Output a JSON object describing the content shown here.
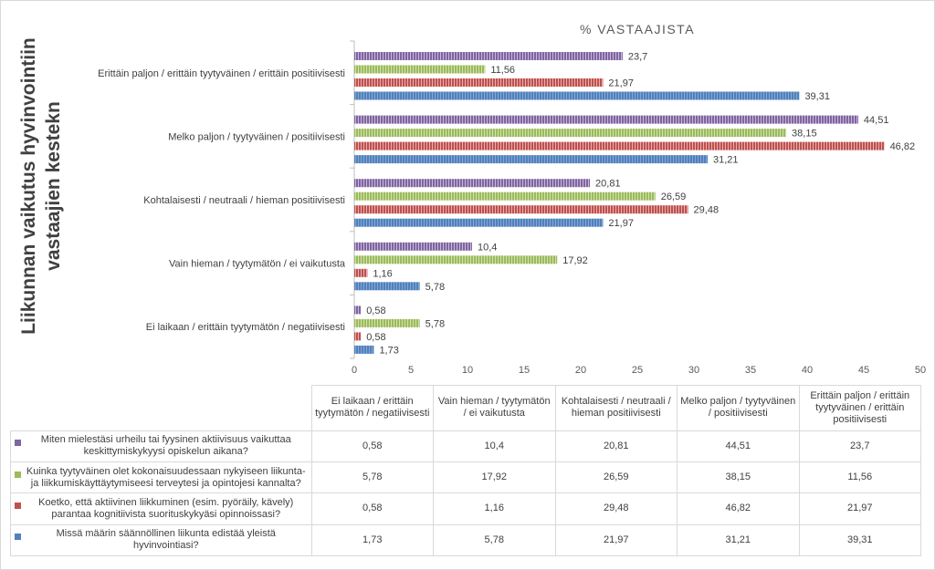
{
  "chart_data": {
    "type": "bar",
    "orientation": "horizontal",
    "title": "% VASTAAJISTA",
    "ylabel_lines": [
      "Liikunnan vaikutus hyvinvointiin",
      "vastaajien kestekn"
    ],
    "xlim": [
      0,
      50
    ],
    "xticks": [
      "0",
      "5",
      "10",
      "15",
      "20",
      "25",
      "30",
      "35",
      "40",
      "45",
      "50"
    ],
    "categories": [
      "Ei laikaan / erittäin tyytymätön / negatiivisesti",
      "Vain hieman / tyytymätön / ei vaikutusta",
      "Kohtalaisesti / neutraali / hieman positiivisesti",
      "Melko paljon / tyytyväinen / positiivisesti",
      "Erittäin paljon / erittäin tyytyväinen / erittäin positiivisesti"
    ],
    "table_headers": [
      "Ei laikaan / erittäin tyytymätön / negatiivisesti",
      "Vain hieman / tyytymätön / ei vaikutusta",
      "Kohtalaisesti / neutraali / hieman positiivisesti",
      "Melko paljon / tyytyväinen / positiivisesti",
      "Erittäin paljon / erittäin tyytyväinen / erittäin positiivisesti"
    ],
    "series": [
      {
        "name": "Miten mielestäsi urheilu tai fyysinen aktiivisuus vaikuttaa keskittymiskykyysi opiskelun aikana?",
        "color": "#8064a2",
        "values": [
          0.58,
          10.4,
          20.81,
          44.51,
          23.7
        ],
        "labels": [
          "0,58",
          "10,4",
          "20,81",
          "44,51",
          "23,7"
        ]
      },
      {
        "name": "Kuinka tyytyväinen olet kokonaisuudessaan nykyiseen liikunta- ja liikkumiskäyttäytymiseesi terveytesi ja opintojesi kannalta?",
        "color": "#9bbb59",
        "values": [
          5.78,
          17.92,
          26.59,
          38.15,
          11.56
        ],
        "labels": [
          "5,78",
          "17,92",
          "26,59",
          "38,15",
          "11,56"
        ]
      },
      {
        "name": "Koetko, että aktiivinen liikkuminen (esim. pyöräily, kävely) parantaa kognitiivista suorituskykyäsi opinnoissasi?",
        "color": "#c0504d",
        "values": [
          0.58,
          1.16,
          29.48,
          46.82,
          21.97
        ],
        "labels": [
          "0,58",
          "1,16",
          "29,48",
          "46,82",
          "21,97"
        ]
      },
      {
        "name": "Missä määrin säännöllinen liikunta edistää yleistä hyvinvointiasi?",
        "color": "#4f81bd",
        "values": [
          1.73,
          5.78,
          21.97,
          31.21,
          39.31
        ],
        "labels": [
          "1,73",
          "5,78",
          "21,97",
          "31,21",
          "39,31"
        ]
      }
    ],
    "grid": false,
    "legend": "data table below chart"
  }
}
